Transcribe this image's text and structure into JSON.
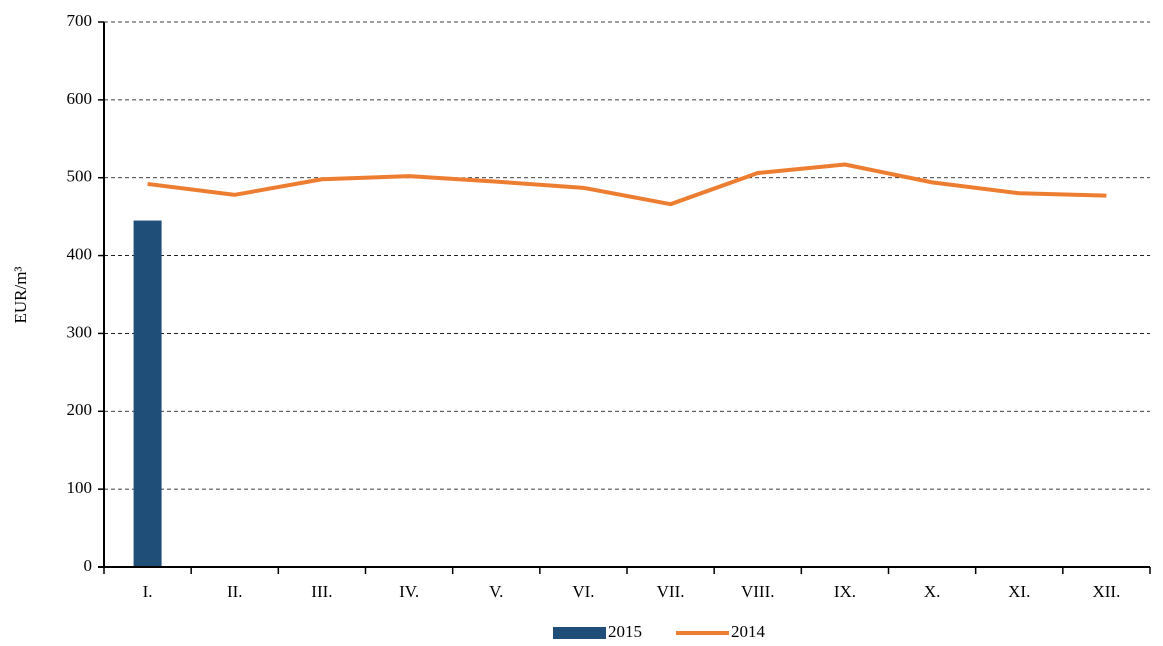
{
  "chart_data": {
    "type": "combo",
    "ylabel": "EUR/m³",
    "categories": [
      "I.",
      "II.",
      "III.",
      "IV.",
      "V.",
      "VI.",
      "VII.",
      "VIII.",
      "IX.",
      "X.",
      "XI.",
      "XII."
    ],
    "series": [
      {
        "name": "2015",
        "type": "bar",
        "color": "#1f4e79",
        "values": [
          445,
          null,
          null,
          null,
          null,
          null,
          null,
          null,
          null,
          null,
          null,
          null
        ]
      },
      {
        "name": "2014",
        "type": "line",
        "color": "#ed7d31",
        "values": [
          492,
          478,
          498,
          502,
          495,
          487,
          466,
          506,
          517,
          494,
          480,
          477
        ]
      }
    ],
    "ylim": [
      0,
      700
    ],
    "yticks": [
      0,
      100,
      200,
      300,
      400,
      500,
      600,
      700
    ],
    "grid": true,
    "legend": "bottom"
  }
}
